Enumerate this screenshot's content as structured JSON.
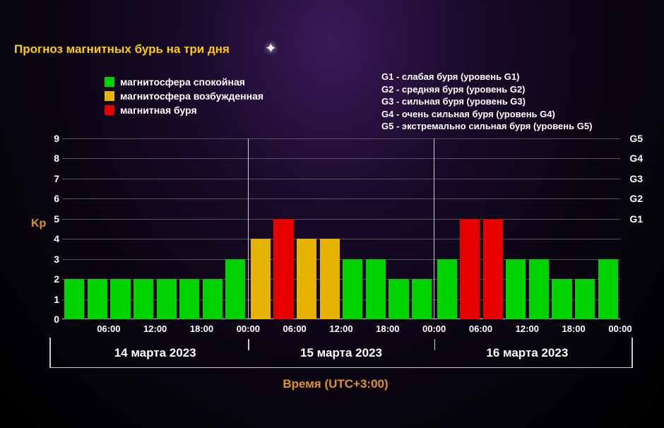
{
  "title": "Прогноз магнитных бурь на три дня",
  "legend_left": [
    {
      "color": "#00d400",
      "label": "магнитосфера спокойная"
    },
    {
      "color": "#e6b400",
      "label": "магнитосфера возбужденная"
    },
    {
      "color": "#e60000",
      "label": "магнитная буря"
    }
  ],
  "legend_right": [
    "G1 - слабая буря (уровень G1)",
    "G2 - средняя буря (уровень G2)",
    "G3 - сильная буря (уровень G3)",
    "G4 - очень сильная буря (уровень G4)",
    "G5 - экстремально сильная буря (уровень G5)"
  ],
  "chart": {
    "type": "bar",
    "ylabel": "Kp",
    "ylim": [
      0,
      9
    ],
    "yticks": [
      0,
      1,
      2,
      3,
      4,
      5,
      6,
      7,
      8,
      9
    ],
    "yticks_right": [
      {
        "at": 5,
        "label": "G1"
      },
      {
        "at": 6,
        "label": "G2"
      },
      {
        "at": 7,
        "label": "G3"
      },
      {
        "at": 8,
        "label": "G4"
      },
      {
        "at": 9,
        "label": "G5"
      }
    ],
    "grid_color": "#555555",
    "axis_color": "#cccccc",
    "background": "transparent",
    "colors": {
      "calm": "#00d400",
      "excited": "#e6b400",
      "storm": "#e60000"
    },
    "days": [
      {
        "date": "14 марта 2023",
        "ticks": [
          "06:00",
          "12:00",
          "18:00",
          "00:00"
        ],
        "bars": [
          {
            "v": 2,
            "c": "calm"
          },
          {
            "v": 2,
            "c": "calm"
          },
          {
            "v": 2,
            "c": "calm"
          },
          {
            "v": 2,
            "c": "calm"
          },
          {
            "v": 2,
            "c": "calm"
          },
          {
            "v": 2,
            "c": "calm"
          },
          {
            "v": 2,
            "c": "calm"
          },
          {
            "v": 3,
            "c": "calm"
          }
        ]
      },
      {
        "date": "15 марта 2023",
        "ticks": [
          "06:00",
          "12:00",
          "18:00",
          "00:00"
        ],
        "bars": [
          {
            "v": 4,
            "c": "excited"
          },
          {
            "v": 5,
            "c": "storm"
          },
          {
            "v": 4,
            "c": "excited"
          },
          {
            "v": 4,
            "c": "excited"
          },
          {
            "v": 3,
            "c": "calm"
          },
          {
            "v": 3,
            "c": "calm"
          },
          {
            "v": 2,
            "c": "calm"
          },
          {
            "v": 2,
            "c": "calm"
          }
        ]
      },
      {
        "date": "16 марта 2023",
        "ticks": [
          "06:00",
          "12:00",
          "18:00",
          "00:00"
        ],
        "bars": [
          {
            "v": 3,
            "c": "calm"
          },
          {
            "v": 5,
            "c": "storm"
          },
          {
            "v": 5,
            "c": "storm"
          },
          {
            "v": 3,
            "c": "calm"
          },
          {
            "v": 3,
            "c": "calm"
          },
          {
            "v": 2,
            "c": "calm"
          },
          {
            "v": 2,
            "c": "calm"
          },
          {
            "v": 3,
            "c": "calm"
          }
        ]
      }
    ],
    "xlabel": "Время (UTC+3:00)"
  },
  "title_fontsize": 17,
  "legend_fontsize": 14,
  "tick_fontsize": 13,
  "date_fontsize": 17
}
